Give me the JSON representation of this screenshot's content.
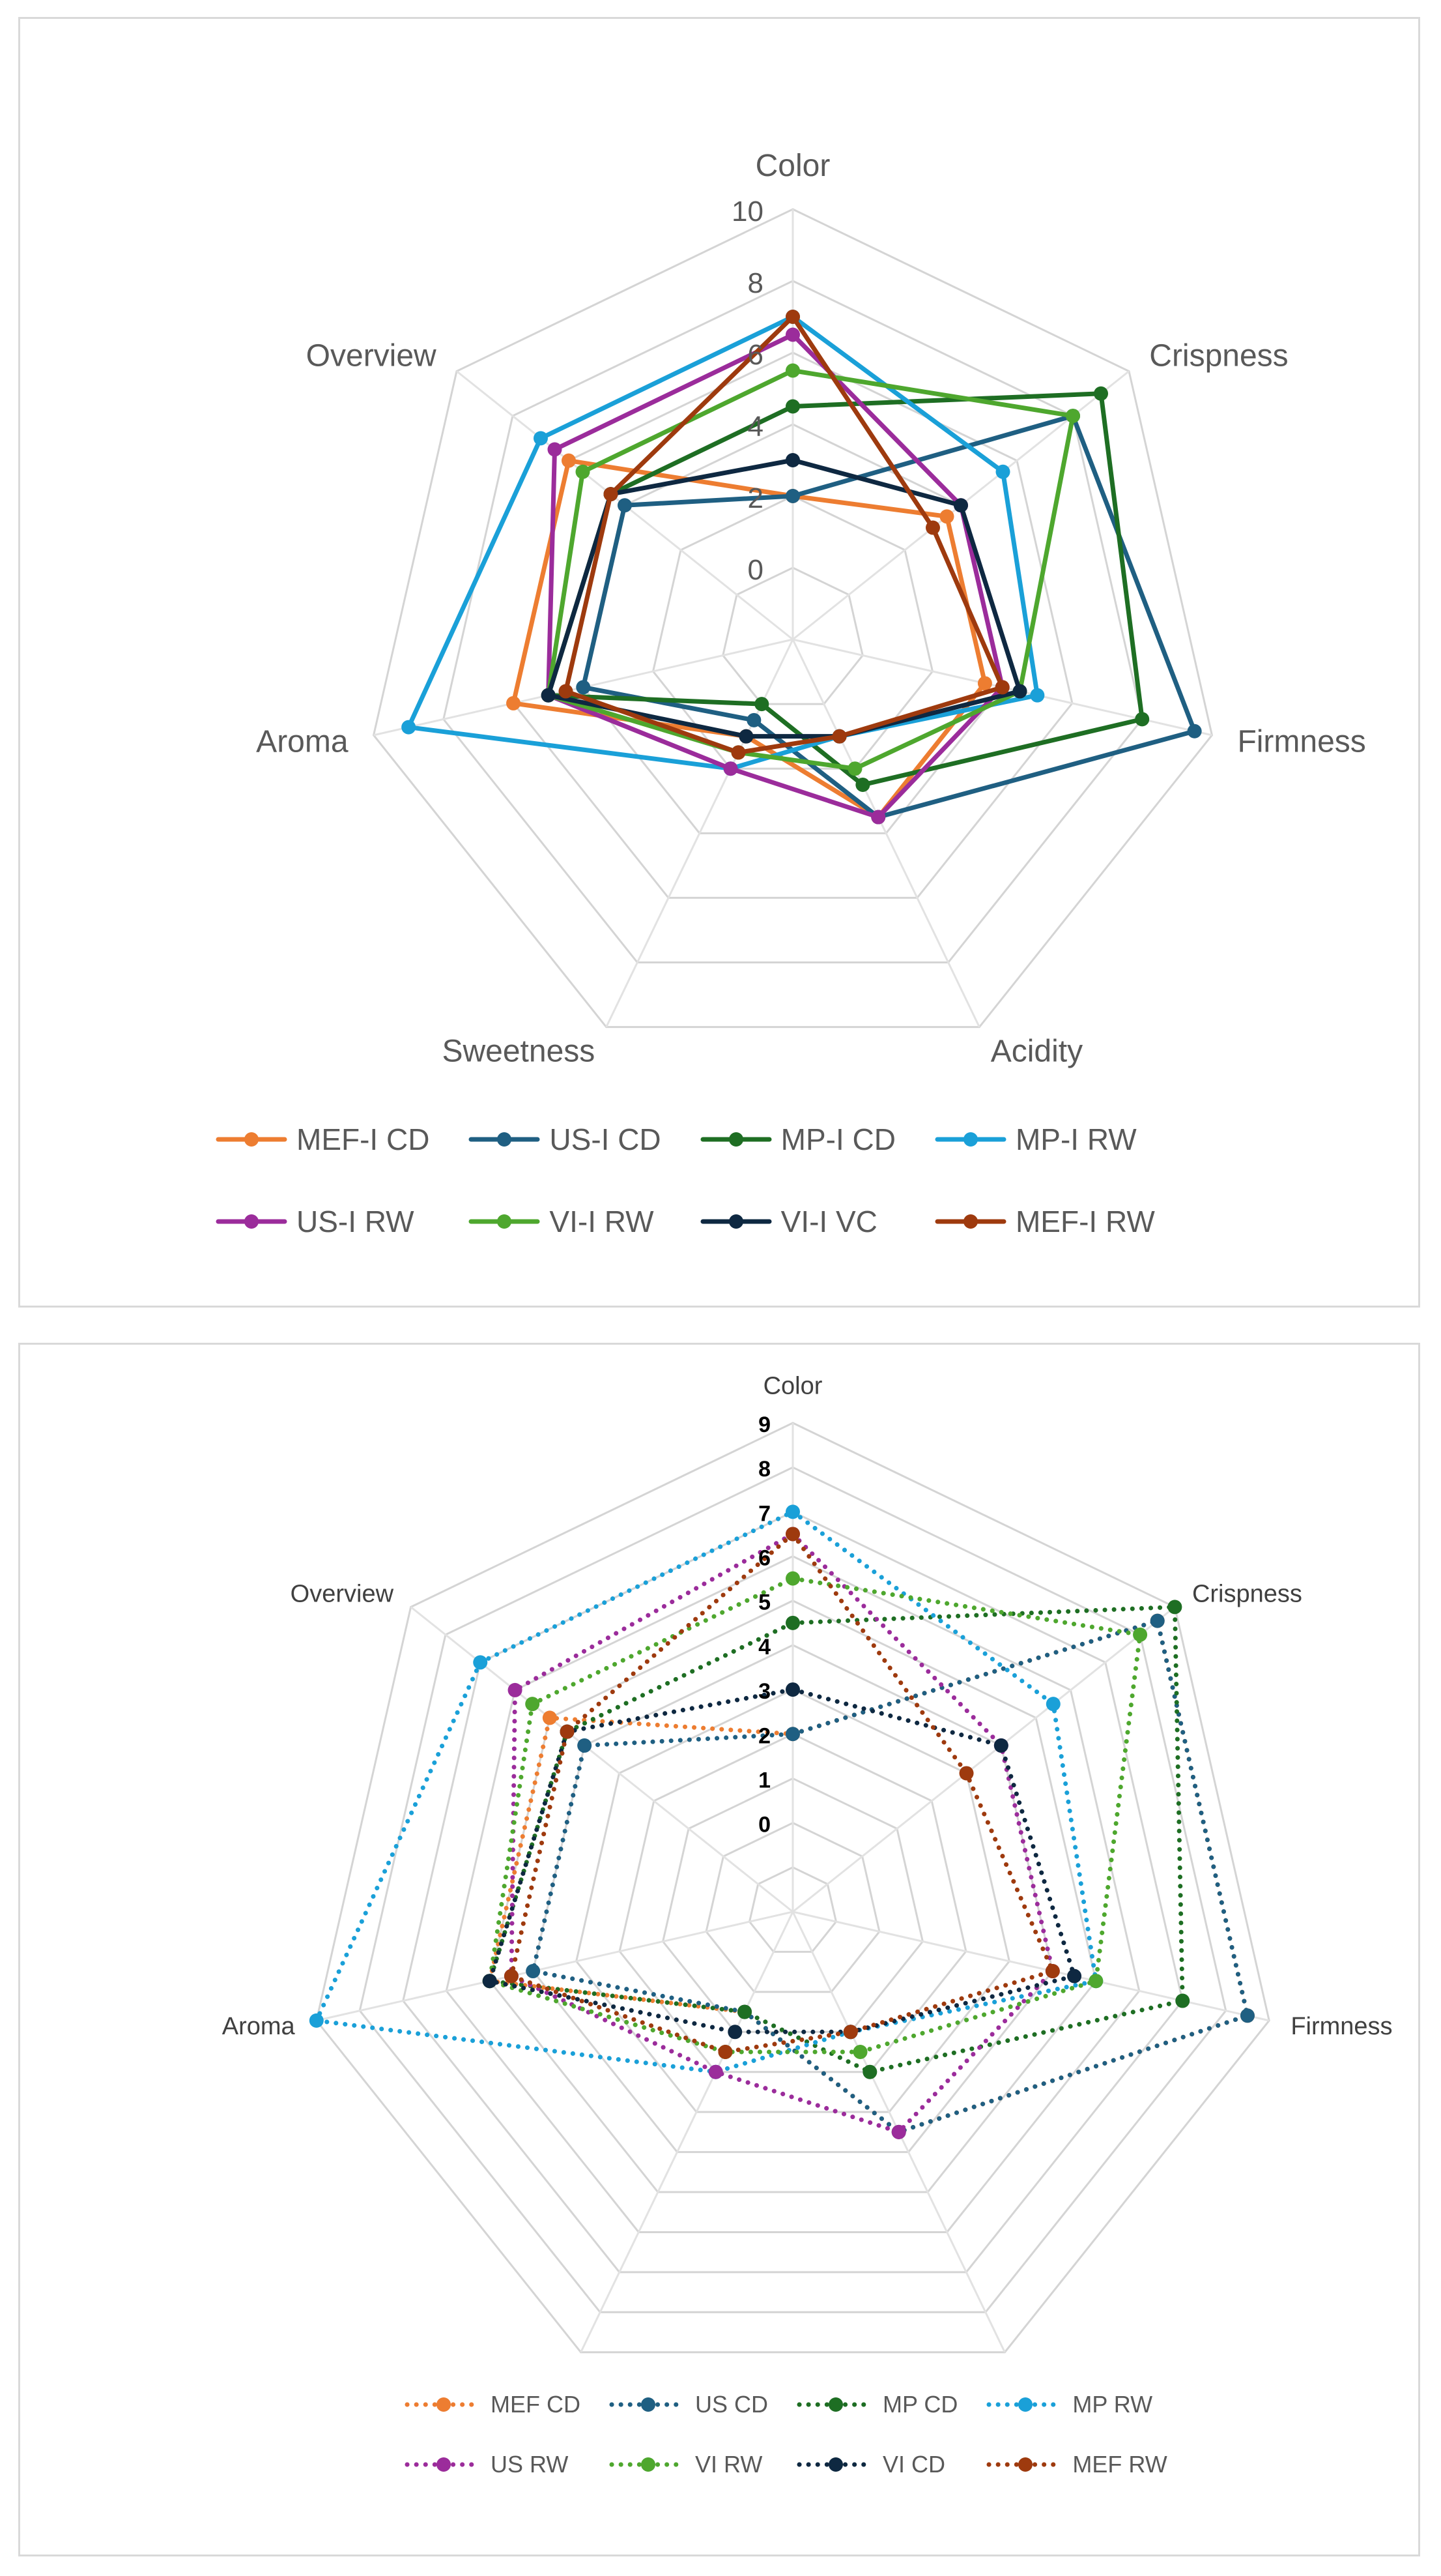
{
  "chart_data": [
    {
      "type": "radar",
      "axes": [
        "Color",
        "Crispness",
        "Firmness",
        "Acidity",
        "Sweetness",
        "Aroma",
        "Overview"
      ],
      "ticks": [
        "0",
        "2",
        "4",
        "6",
        "8",
        "10"
      ],
      "rlim": [
        -2,
        10
      ],
      "line_style": "solid",
      "legend_position": "bottom",
      "series": [
        {
          "name": "MEF-I CD",
          "color": "#ED7D31",
          "values": [
            2.0,
            3.5,
            3.5,
            3.5,
            1.0,
            6.0,
            6.0
          ]
        },
        {
          "name": "US-I  CD",
          "color": "#1F5F82",
          "values": [
            2.0,
            8.0,
            9.5,
            3.5,
            0.5,
            4.0,
            4.0
          ]
        },
        {
          "name": "MP-I CD",
          "color": "#1E6E23",
          "values": [
            4.5,
            9.0,
            8.0,
            2.5,
            0.0,
            5.0,
            4.5
          ]
        },
        {
          "name": "MP-I RW",
          "color": "#1AA0D8",
          "values": [
            7.0,
            5.5,
            5.0,
            1.0,
            2.0,
            9.0,
            7.0
          ]
        },
        {
          "name": "US-I RW",
          "color": "#9B2C9B",
          "values": [
            6.5,
            4.0,
            4.0,
            3.5,
            2.0,
            5.0,
            6.5
          ]
        },
        {
          "name": "VI-I RW",
          "color": "#4EA72E",
          "values": [
            5.5,
            8.0,
            4.5,
            2.0,
            1.5,
            5.0,
            5.5
          ]
        },
        {
          "name": "VI-I VC",
          "color": "#0E2841",
          "values": [
            3.0,
            4.0,
            4.5,
            1.0,
            1.0,
            5.0,
            4.5
          ]
        },
        {
          "name": "MEF-I RW",
          "color": "#9E3A0E",
          "values": [
            7.0,
            3.0,
            4.0,
            1.0,
            1.5,
            4.5,
            4.5
          ]
        }
      ]
    },
    {
      "type": "radar",
      "axes": [
        "Color",
        "Crispness",
        "Firmness",
        "Acidity",
        "Sweetness",
        "Aroma",
        "Overview"
      ],
      "ticks": [
        "0",
        "1",
        "2",
        "3",
        "4",
        "5",
        "6",
        "7",
        "8",
        "9"
      ],
      "rlim": [
        -2,
        9
      ],
      "line_style": "dotted",
      "legend_position": "bottom",
      "series": [
        {
          "name": "MEF CD",
          "color": "#ED7D31",
          "values": [
            2.0,
            8.5,
            8.5,
            3.5,
            0.5,
            5.0,
            5.0
          ]
        },
        {
          "name": "US CD",
          "color": "#1F5F82",
          "values": [
            2.0,
            8.5,
            8.5,
            3.5,
            0.5,
            4.0,
            4.0
          ]
        },
        {
          "name": "MP CD",
          "color": "#1E6E23",
          "values": [
            4.5,
            9.0,
            7.0,
            2.0,
            0.5,
            5.0,
            4.5
          ]
        },
        {
          "name": "MP RW",
          "color": "#1AA0D8",
          "values": [
            7.0,
            5.5,
            5.0,
            1.0,
            2.0,
            9.0,
            7.0
          ]
        },
        {
          "name": "US RW",
          "color": "#9B2C9B",
          "values": [
            6.5,
            4.0,
            4.0,
            3.5,
            2.0,
            4.5,
            6.0
          ]
        },
        {
          "name": "VI RW",
          "color": "#4EA72E",
          "values": [
            5.5,
            8.0,
            5.0,
            1.5,
            1.5,
            5.0,
            5.5
          ]
        },
        {
          "name": "VI CD",
          "color": "#0E2841",
          "values": [
            3.0,
            4.0,
            4.5,
            1.0,
            1.0,
            5.0,
            4.5
          ]
        },
        {
          "name": "MEF RW",
          "color": "#9E3A0E",
          "values": [
            6.5,
            3.0,
            4.0,
            1.0,
            1.5,
            4.5,
            4.5
          ]
        }
      ]
    }
  ]
}
